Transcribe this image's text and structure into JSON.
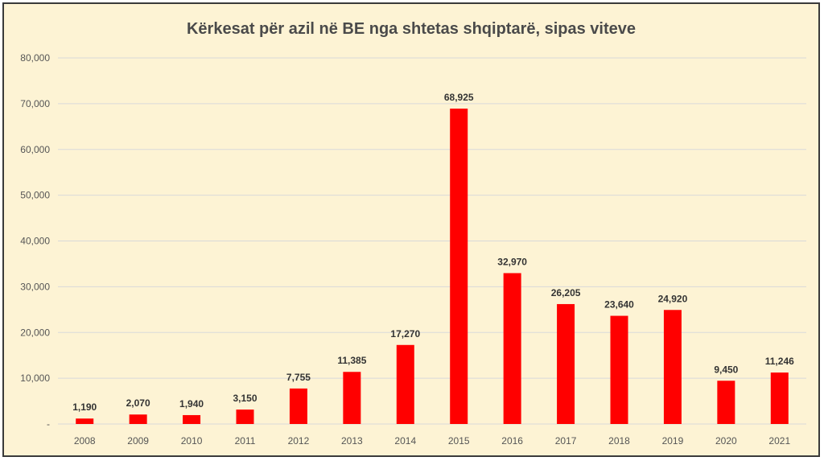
{
  "colors": {
    "bar": "#ff0000",
    "background": "#fdf3d4",
    "grid": "#d9d9d9",
    "text": "#555555"
  },
  "chart_data": {
    "type": "bar",
    "title": "Kërkesat për azil në BE nga shtetas shqiptarë, sipas viteve",
    "categories": [
      "2008",
      "2009",
      "2010",
      "2011",
      "2012",
      "2013",
      "2014",
      "2015",
      "2016",
      "2017",
      "2018",
      "2019",
      "2020",
      "2021"
    ],
    "values": [
      1190,
      2070,
      1940,
      3150,
      7755,
      11385,
      17270,
      68925,
      32970,
      26205,
      23640,
      24920,
      9450,
      11246
    ],
    "data_labels": [
      "1,190",
      "2,070",
      "1,940",
      "3,150",
      "7,755",
      "11,385",
      "17,270",
      "68,925",
      "32,970",
      "26,205",
      "23,640",
      "24,920",
      "9,450",
      "11,246"
    ],
    "yticks": [
      0,
      10000,
      20000,
      30000,
      40000,
      50000,
      60000,
      70000,
      80000
    ],
    "ytick_labels": [
      "-",
      "10,000",
      "20,000",
      "30,000",
      "40,000",
      "50,000",
      "60,000",
      "70,000",
      "80,000"
    ],
    "ylim": [
      0,
      80000
    ],
    "grid": true,
    "legend": "none"
  }
}
